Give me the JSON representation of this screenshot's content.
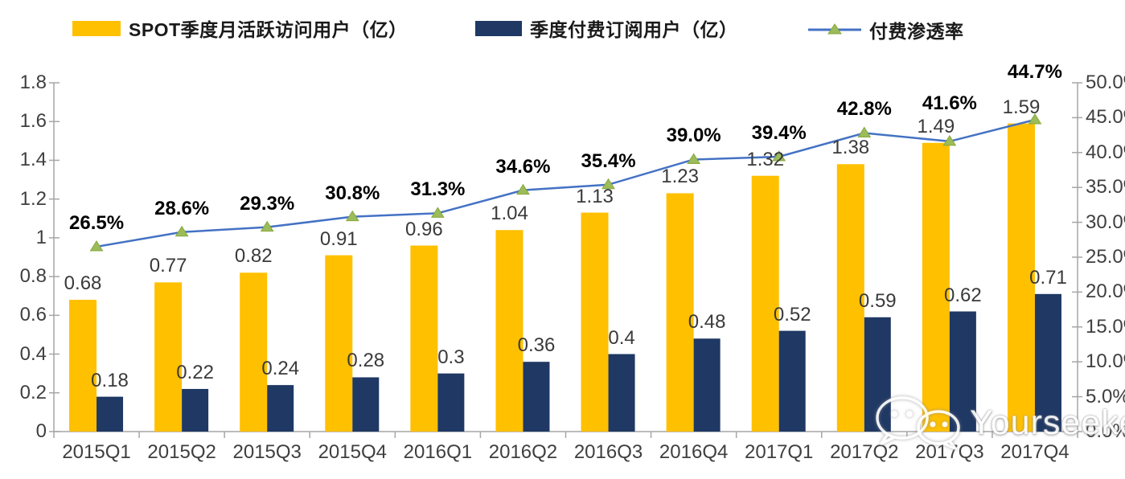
{
  "chart_data": {
    "type": "bar",
    "subtype": "bar-line-combo",
    "categories": [
      "2015Q1",
      "2015Q2",
      "2015Q3",
      "2015Q4",
      "2016Q1",
      "2016Q2",
      "2016Q3",
      "2016Q4",
      "2017Q1",
      "2017Q2",
      "2017Q3",
      "2017Q4"
    ],
    "series": [
      {
        "name": "SPOT季度月活跃访问用户（亿）",
        "type": "bar",
        "axis": "left",
        "color": "#FFC000",
        "values": [
          0.68,
          0.77,
          0.82,
          0.91,
          0.96,
          1.04,
          1.13,
          1.23,
          1.32,
          1.38,
          1.49,
          1.59
        ],
        "labels": [
          "0.68",
          "0.77",
          "0.82",
          "0.91",
          "0.96",
          "1.04",
          "1.13",
          "1.23",
          "1.32",
          "1.38",
          "1.49",
          "1.59"
        ]
      },
      {
        "name": "季度付费订阅用户（亿）",
        "type": "bar",
        "axis": "left",
        "color": "#1F3864",
        "values": [
          0.18,
          0.22,
          0.24,
          0.28,
          0.3,
          0.36,
          0.4,
          0.48,
          0.52,
          0.59,
          0.62,
          0.71
        ],
        "labels": [
          "0.18",
          "0.22",
          "0.24",
          "0.28",
          "0.3",
          "0.36",
          "0.4",
          "0.48",
          "0.52",
          "0.59",
          "0.62",
          "0.71"
        ]
      },
      {
        "name": "付费渗透率",
        "type": "line",
        "axis": "right",
        "color": "#4472C4",
        "marker": "triangle-up",
        "marker_color": "#9CBB59",
        "values": [
          26.5,
          28.6,
          29.3,
          30.8,
          31.3,
          34.6,
          35.4,
          39.0,
          39.4,
          42.8,
          41.6,
          44.7
        ],
        "labels": [
          "26.5%",
          "28.6%",
          "29.3%",
          "30.8%",
          "31.3%",
          "34.6%",
          "35.4%",
          "39.0%",
          "39.4%",
          "42.8%",
          "41.6%",
          "44.7%"
        ]
      }
    ],
    "left_axis": {
      "min": 0,
      "max": 1.8,
      "step": 0.2,
      "ticks": [
        "0",
        "0.2",
        "0.4",
        "0.6",
        "0.8",
        "1",
        "1.2",
        "1.4",
        "1.6",
        "1.8"
      ]
    },
    "right_axis": {
      "min": 0,
      "max": 50,
      "step": 5,
      "ticks": [
        "0.0%",
        "5.0%",
        "10.0%",
        "15.0%",
        "20.0%",
        "25.0%",
        "30.0%",
        "35.0%",
        "40.0%",
        "45.0%",
        "50.0%"
      ]
    },
    "legend_position": "top",
    "grid": false,
    "axis_color": "#A6A6A6"
  },
  "watermark": {
    "text": "Yourseeker",
    "icon": "wechat-icon"
  }
}
